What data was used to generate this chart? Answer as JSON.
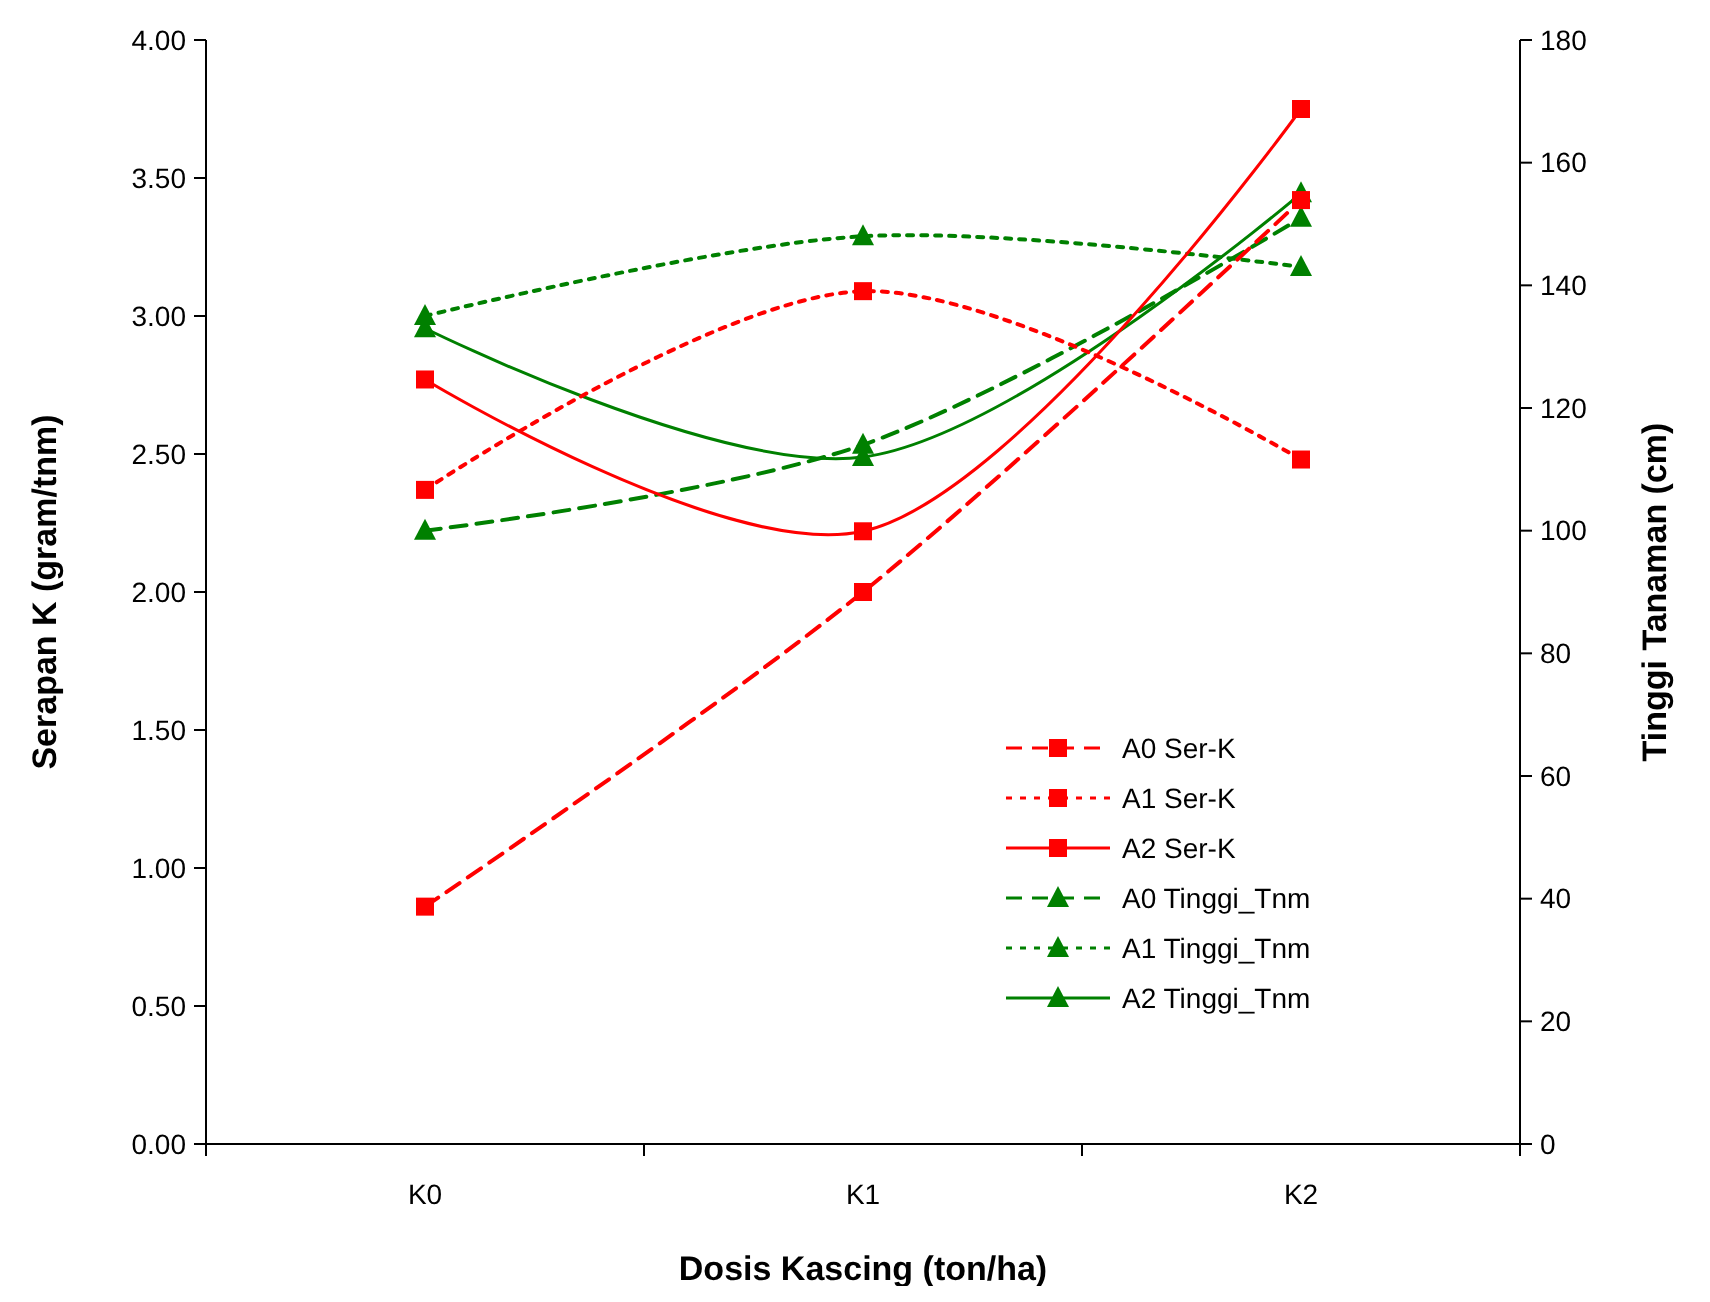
{
  "chart_data": {
    "type": "line",
    "xlabel": "Dosis Kascing (ton/ha)",
    "ylabel": "Serapan K (gram/tnm)",
    "y2label": "Tinggi Tanaman (cm)",
    "categories": [
      "K0",
      "K1",
      "K2"
    ],
    "ylim": [
      0,
      4
    ],
    "yticks": [
      {
        "value": 0,
        "label": "0.00"
      },
      {
        "value": 0.5,
        "label": "0.50"
      },
      {
        "value": 1,
        "label": "1.00"
      },
      {
        "value": 1.5,
        "label": "1.50"
      },
      {
        "value": 2,
        "label": "2.00"
      },
      {
        "value": 2.5,
        "label": "2.50"
      },
      {
        "value": 3,
        "label": "3.00"
      },
      {
        "value": 3.5,
        "label": "3.50"
      },
      {
        "value": 4,
        "label": "4.00"
      }
    ],
    "y2lim": [
      0,
      180
    ],
    "y2ticks": [
      0,
      20,
      40,
      60,
      80,
      100,
      120,
      140,
      160,
      180
    ],
    "grid": false,
    "legend": "bottom right",
    "series": [
      {
        "name": "A0 Ser-K",
        "color": "#ff0000",
        "values": [
          0.86,
          2.0,
          3.42
        ],
        "marker": "square",
        "line_style": "dashed",
        "axis": "y"
      },
      {
        "name": "A1 Ser-K",
        "color": "#ff0000",
        "values": [
          2.37,
          3.09,
          2.48
        ],
        "marker": "square",
        "line_style": "dotted",
        "axis": "y"
      },
      {
        "name": "A2 Ser-K",
        "color": "#ff0000",
        "values": [
          2.77,
          2.22,
          3.75
        ],
        "marker": "square",
        "line_style": "solid",
        "axis": "y"
      },
      {
        "name": "A0 Tinggi_Tnm",
        "color": "#008000",
        "values": [
          100,
          114,
          151
        ],
        "marker": "triangle",
        "line_style": "dashed",
        "axis": "y2"
      },
      {
        "name": "A1 Tinggi_Tnm",
        "color": "#008000",
        "values": [
          135,
          148,
          143
        ],
        "marker": "triangle",
        "line_style": "dotted",
        "axis": "y2"
      },
      {
        "name": "A2 Tinggi_Tnm",
        "color": "#008000",
        "values": [
          133,
          112,
          155
        ],
        "marker": "triangle",
        "line_style": "solid",
        "axis": "y2"
      }
    ]
  }
}
